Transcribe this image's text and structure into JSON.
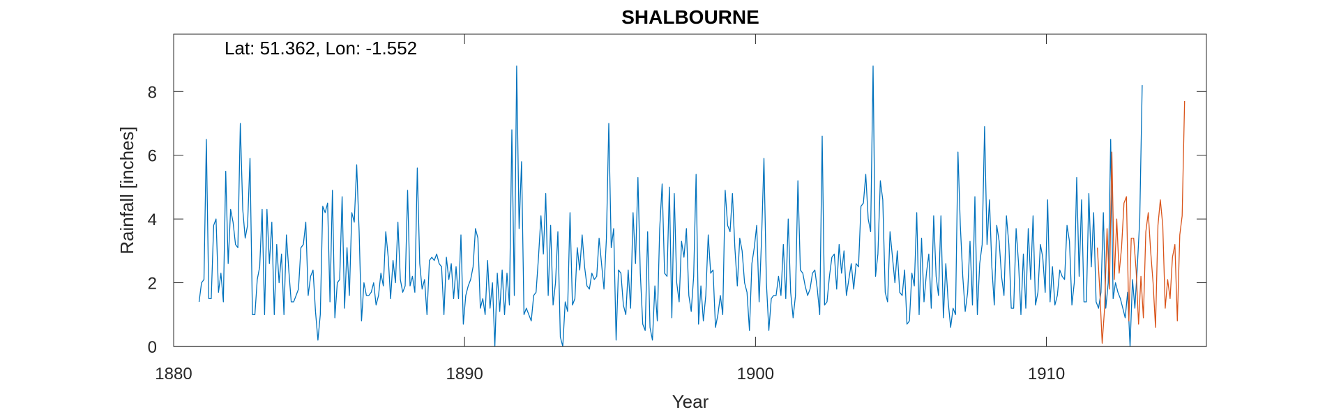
{
  "chart_data": {
    "type": "line",
    "title": "SHALBOURNE",
    "annotation": "Lat: 51.362, Lon: -1.552",
    "xlabel": "Year",
    "ylabel": "Rainfall [inches]",
    "xlim": [
      1880,
      1915.5
    ],
    "ylim": [
      0,
      9.8
    ],
    "xticks": [
      1880,
      1890,
      1900,
      1910
    ],
    "yticks": [
      0,
      2,
      4,
      6,
      8
    ],
    "grid": false,
    "series": [
      {
        "color": "#0072BD",
        "x_start": 1880.875,
        "x_step": 0.0833333,
        "values": [
          1.4,
          2.0,
          2.1,
          6.5,
          1.5,
          1.5,
          3.8,
          4.0,
          1.7,
          2.3,
          1.4,
          5.5,
          2.6,
          4.3,
          3.9,
          3.2,
          3.1,
          7.0,
          4.3,
          3.4,
          3.8,
          5.9,
          1.0,
          1.0,
          2.1,
          2.5,
          4.3,
          1.0,
          4.3,
          2.6,
          3.9,
          1.0,
          3.2,
          2.0,
          2.9,
          1.0,
          3.5,
          2.4,
          1.4,
          1.4,
          1.6,
          1.8,
          3.1,
          3.2,
          3.9,
          1.6,
          2.2,
          2.4,
          1.1,
          0.2,
          1.0,
          4.4,
          4.2,
          4.5,
          1.4,
          4.9,
          0.9,
          2.0,
          2.1,
          4.7,
          1.2,
          3.1,
          1.6,
          4.2,
          3.9,
          5.7,
          3.6,
          0.8,
          2.0,
          1.6,
          1.6,
          1.7,
          2.0,
          1.3,
          1.6,
          2.3,
          1.9,
          3.6,
          2.8,
          1.5,
          2.7,
          2.0,
          3.9,
          2.1,
          1.7,
          1.9,
          4.9,
          1.9,
          2.2,
          1.7,
          5.6,
          2.6,
          1.8,
          2.1,
          1.0,
          2.7,
          2.8,
          2.7,
          2.9,
          2.6,
          2.5,
          1.0,
          2.8,
          2.1,
          2.6,
          1.5,
          2.5,
          1.5,
          3.5,
          0.7,
          1.6,
          1.9,
          2.1,
          2.5,
          3.7,
          3.4,
          1.2,
          1.5,
          1.0,
          2.7,
          1.2,
          2.0,
          0.0,
          2.3,
          1.1,
          2.4,
          1.0,
          2.3,
          1.3,
          6.8,
          1.6,
          8.8,
          3.7,
          5.8,
          1.0,
          1.2,
          1.0,
          0.8,
          1.6,
          1.7,
          2.8,
          4.1,
          2.9,
          4.8,
          1.6,
          3.8,
          1.3,
          2.0,
          3.6,
          0.3,
          0.0,
          1.4,
          1.1,
          4.2,
          1.3,
          1.5,
          3.1,
          2.4,
          3.5,
          2.5,
          1.9,
          1.8,
          2.3,
          2.1,
          2.2,
          3.4,
          2.6,
          1.8,
          3.4,
          7.0,
          3.1,
          3.7,
          0.2,
          2.4,
          2.3,
          1.3,
          1.0,
          2.4,
          1.2,
          4.2,
          2.6,
          5.3,
          2.3,
          0.7,
          0.5,
          3.6,
          0.6,
          0.2,
          1.9,
          0.8,
          3.7,
          5.1,
          2.3,
          2.2,
          5.0,
          0.9,
          4.8,
          2.0,
          1.4,
          3.3,
          2.8,
          3.7,
          1.6,
          1.1,
          2.2,
          5.4,
          0.7,
          1.9,
          0.8,
          1.6,
          3.5,
          2.3,
          2.4,
          0.6,
          1.0,
          1.6,
          1.0,
          4.9,
          3.8,
          3.6,
          4.8,
          3.1,
          1.9,
          3.4,
          3.0,
          2.0,
          1.7,
          0.5,
          2.6,
          3.1,
          3.8,
          1.4,
          3.4,
          5.9,
          2.0,
          0.5,
          1.5,
          1.6,
          1.6,
          2.2,
          1.6,
          3.2,
          1.5,
          4.0,
          1.7,
          0.9,
          1.6,
          5.2,
          2.4,
          2.3,
          1.9,
          1.6,
          1.8,
          2.3,
          2.4,
          1.8,
          1.0,
          6.6,
          1.3,
          1.4,
          2.2,
          2.8,
          2.9,
          1.8,
          3.2,
          2.3,
          3.0,
          1.6,
          2.1,
          2.6,
          1.8,
          2.6,
          2.5,
          4.4,
          4.5,
          5.4,
          4.0,
          3.6,
          8.8,
          2.2,
          2.9,
          5.2,
          4.6,
          1.7,
          1.4,
          3.6,
          2.8,
          2.0,
          3.0,
          1.7,
          1.6,
          2.4,
          0.7,
          0.8,
          2.3,
          1.9,
          4.2,
          1.0,
          3.4,
          1.4,
          2.3,
          2.9,
          1.2,
          4.1,
          2.2,
          1.6,
          4.1,
          0.9,
          2.6,
          1.4,
          0.6,
          1.2,
          1.0,
          6.1,
          3.8,
          2.2,
          1.1,
          1.7,
          3.3,
          1.3,
          4.7,
          1.0,
          2.6,
          3.2,
          6.9,
          3.2,
          4.6,
          2.5,
          1.3,
          3.8,
          3.3,
          2.2,
          1.6,
          4.1,
          3.2,
          1.2,
          1.2,
          3.7,
          2.6,
          1.0,
          2.9,
          1.2,
          3.7,
          2.1,
          4.1,
          1.3,
          1.7,
          3.2,
          2.8,
          1.7,
          4.6,
          1.4,
          2.5,
          1.3,
          1.6,
          2.4,
          2.2,
          2.1,
          3.8,
          3.3,
          1.3,
          2.0,
          5.3,
          2.2,
          4.6,
          1.4,
          1.4,
          4.8,
          2.5,
          4.2,
          1.4,
          1.2,
          1.7,
          4.2,
          1.2,
          2.0,
          6.5,
          1.5,
          2.0,
          1.7,
          1.5,
          1.2,
          0.9,
          1.7,
          0.0,
          2.1,
          1.2,
          2.5,
          4.0,
          8.2
        ]
      },
      {
        "color": "#D95319",
        "x_start": 1911.75,
        "x_step": 0.0833333,
        "values": [
          3.1,
          1.8,
          0.1,
          1.2,
          3.7,
          1.8,
          6.1,
          2.1,
          4.0,
          2.3,
          3.1,
          4.5,
          4.7,
          0.8,
          3.4,
          3.4,
          2.4,
          0.7,
          2.2,
          0.9,
          3.6,
          4.2,
          3.0,
          2.0,
          0.6,
          3.8,
          4.6,
          3.8,
          1.2,
          2.1,
          1.5,
          2.8,
          3.2,
          0.8,
          3.5,
          4.1,
          7.7
        ]
      }
    ]
  }
}
